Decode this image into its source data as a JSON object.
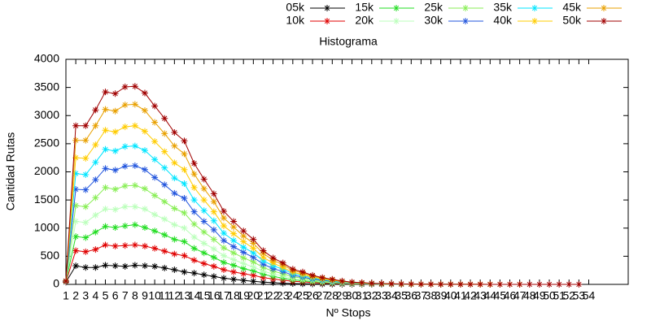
{
  "chart_data": {
    "type": "line",
    "title": "Histograma",
    "x_label": "Nº Stops",
    "y_label": "Cantidad Rutas",
    "x": [
      1,
      2,
      3,
      4,
      5,
      6,
      7,
      8,
      9,
      10,
      11,
      12,
      13,
      14,
      15,
      16,
      17,
      18,
      19,
      20,
      21,
      22,
      23,
      24,
      25,
      26,
      27,
      28,
      29,
      30,
      31,
      32,
      33,
      34,
      35,
      36,
      37,
      38,
      39,
      40,
      41,
      42,
      43,
      44,
      45,
      46,
      47,
      48,
      49,
      50,
      51,
      52,
      53
    ],
    "xlim": [
      1,
      58
    ],
    "xticks": [
      1,
      2,
      3,
      4,
      5,
      6,
      7,
      8,
      9,
      10,
      11,
      12,
      13,
      14,
      15,
      16,
      17,
      18,
      19,
      20,
      21,
      22,
      23,
      24,
      25,
      26,
      27,
      28,
      29,
      30,
      31,
      32,
      33,
      34,
      35,
      36,
      37,
      38,
      39,
      40,
      41,
      42,
      43,
      44,
      45,
      46,
      47,
      48,
      49,
      50,
      51,
      52,
      53,
      54
    ],
    "ylim": [
      0,
      4000
    ],
    "yticks": [
      0,
      500,
      1000,
      1500,
      2000,
      2500,
      3000,
      3500,
      4000
    ],
    "grid": false,
    "legend": "top-right",
    "series": [
      {
        "name": "05k",
        "color": "#000000",
        "values": [
          40,
          330,
          300,
          300,
          340,
          330,
          320,
          340,
          330,
          320,
          290,
          260,
          220,
          200,
          170,
          140,
          110,
          90,
          70,
          55,
          40,
          30,
          20,
          15,
          10,
          8,
          5,
          3,
          2,
          1,
          1,
          0,
          0,
          null,
          null,
          null,
          null,
          null,
          null,
          null,
          null,
          null,
          null,
          null,
          null,
          null,
          null,
          null,
          null,
          null,
          null,
          null,
          null
        ]
      },
      {
        "name": "10k",
        "color": "#e00000",
        "values": [
          45,
          600,
          580,
          620,
          700,
          680,
          690,
          700,
          680,
          640,
          590,
          540,
          510,
          430,
          370,
          320,
          260,
          220,
          190,
          160,
          120,
          95,
          75,
          55,
          45,
          32,
          24,
          18,
          12,
          8,
          6,
          4,
          3,
          2,
          1,
          null,
          null,
          null,
          null,
          null,
          null,
          null,
          null,
          null,
          null,
          null,
          null,
          null,
          null,
          null,
          null,
          null,
          null
        ]
      },
      {
        "name": "15k",
        "color": "#22dd22",
        "values": [
          50,
          850,
          830,
          930,
          1030,
          1010,
          1040,
          1060,
          1010,
          950,
          880,
          800,
          760,
          640,
          560,
          480,
          390,
          340,
          280,
          240,
          180,
          140,
          110,
          80,
          65,
          48,
          36,
          27,
          18,
          12,
          9,
          6,
          4,
          3,
          2,
          1,
          null,
          null,
          null,
          null,
          null,
          null,
          null,
          null,
          null,
          null,
          null,
          null,
          null,
          null,
          null,
          null,
          null
        ]
      },
      {
        "name": "20k",
        "color": "#bbffbb",
        "values": [
          50,
          1120,
          1100,
          1230,
          1340,
          1330,
          1380,
          1380,
          1340,
          1240,
          1160,
          1060,
          1000,
          840,
          730,
          630,
          510,
          440,
          370,
          310,
          235,
          185,
          150,
          105,
          85,
          63,
          47,
          35,
          24,
          16,
          12,
          8,
          6,
          4,
          3,
          2,
          1,
          null,
          null,
          null,
          null,
          null,
          null,
          null,
          null,
          null,
          null,
          null,
          null,
          null,
          null,
          null,
          null
        ]
      },
      {
        "name": "25k",
        "color": "#88ee55",
        "values": [
          55,
          1400,
          1380,
          1540,
          1720,
          1690,
          1750,
          1760,
          1700,
          1580,
          1470,
          1350,
          1270,
          1070,
          930,
          800,
          650,
          560,
          470,
          400,
          300,
          235,
          190,
          135,
          110,
          80,
          60,
          45,
          30,
          20,
          15,
          10,
          8,
          5,
          4,
          3,
          2,
          1,
          null,
          null,
          null,
          null,
          null,
          null,
          null,
          null,
          null,
          null,
          null,
          null,
          null,
          null,
          null
        ]
      },
      {
        "name": "30k",
        "color": "#2255dd",
        "values": [
          55,
          1690,
          1680,
          1860,
          2060,
          2030,
          2100,
          2110,
          2040,
          1900,
          1770,
          1620,
          1530,
          1290,
          1120,
          970,
          780,
          670,
          570,
          480,
          360,
          280,
          230,
          160,
          130,
          96,
          72,
          54,
          36,
          24,
          18,
          12,
          9,
          6,
          5,
          3,
          2,
          2,
          1,
          1,
          null,
          null,
          null,
          null,
          null,
          null,
          null,
          null,
          null,
          null,
          null,
          null,
          null
        ]
      },
      {
        "name": "35k",
        "color": "#00e5ff",
        "values": [
          60,
          1970,
          1950,
          2170,
          2400,
          2370,
          2450,
          2460,
          2380,
          2220,
          2070,
          1890,
          1790,
          1500,
          1310,
          1130,
          910,
          780,
          660,
          560,
          420,
          330,
          270,
          190,
          155,
          112,
          84,
          63,
          42,
          28,
          21,
          14,
          10,
          7,
          6,
          4,
          3,
          2,
          1,
          1,
          1,
          0,
          null,
          null,
          null,
          null,
          null,
          null,
          null,
          null,
          null,
          null,
          null
        ]
      },
      {
        "name": "40k",
        "color": "#ffcc00",
        "values": [
          60,
          2250,
          2240,
          2480,
          2740,
          2710,
          2800,
          2820,
          2720,
          2540,
          2360,
          2160,
          2040,
          1720,
          1500,
          1290,
          1040,
          900,
          760,
          640,
          480,
          380,
          300,
          215,
          175,
          128,
          96,
          72,
          48,
          32,
          24,
          16,
          12,
          8,
          6,
          4,
          3,
          2,
          2,
          1,
          1,
          1,
          0,
          0,
          null,
          null,
          null,
          null,
          null,
          null,
          null,
          null,
          null
        ]
      },
      {
        "name": "45k",
        "color": "#e8a000",
        "values": [
          60,
          2560,
          2560,
          2820,
          3110,
          3080,
          3190,
          3200,
          3090,
          2880,
          2680,
          2460,
          2320,
          1960,
          1700,
          1470,
          1180,
          1020,
          860,
          730,
          550,
          430,
          350,
          245,
          200,
          146,
          109,
          82,
          55,
          36,
          27,
          18,
          14,
          9,
          7,
          5,
          4,
          3,
          2,
          2,
          1,
          1,
          1,
          0,
          0,
          0,
          0,
          null,
          null,
          null,
          null,
          null,
          null
        ]
      },
      {
        "name": "50k",
        "color": "#a00000",
        "values": [
          60,
          2820,
          2820,
          3100,
          3420,
          3390,
          3510,
          3520,
          3400,
          3170,
          2950,
          2700,
          2550,
          2150,
          1870,
          1610,
          1300,
          1120,
          950,
          800,
          600,
          470,
          380,
          270,
          220,
          160,
          120,
          90,
          60,
          40,
          30,
          20,
          15,
          10,
          8,
          5,
          4,
          3,
          2,
          2,
          1,
          1,
          1,
          0,
          0,
          0,
          0,
          0,
          0,
          0,
          0,
          0,
          0
        ]
      }
    ]
  }
}
